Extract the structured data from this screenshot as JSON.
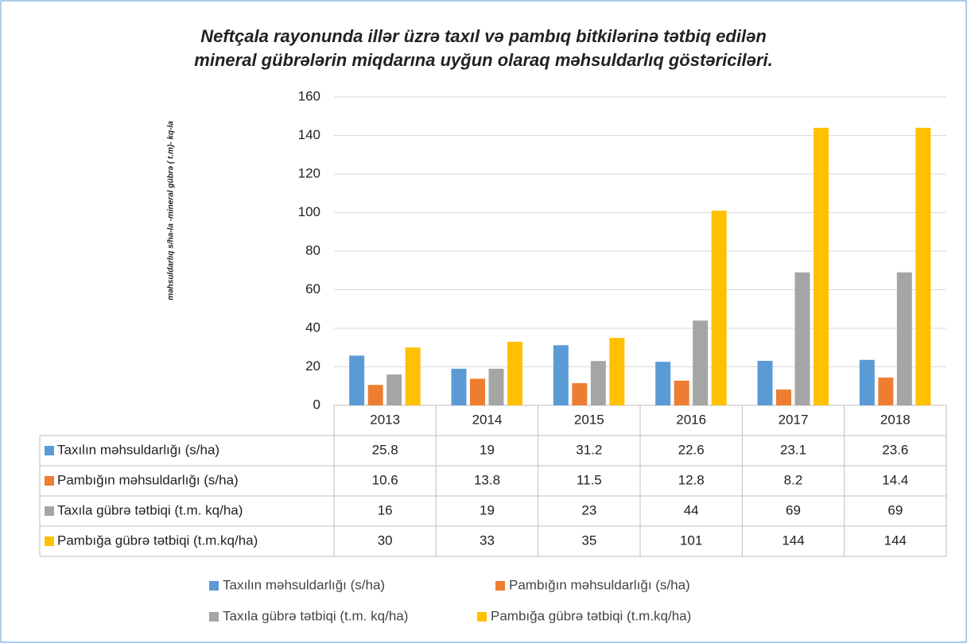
{
  "chart_data": {
    "type": "bar",
    "title": [
      "Neftçala rayonunda illər üzrə taxıl və pambıq bitkilərinə  tətbiq edilən",
      "mineral gübrələrin miqdarına uyğun olaraq məhsuldarlıq göstəriciləri."
    ],
    "y_label": "məhsuldarlıq s/ha-la -mineral gübrə ( t.m)- kq-la",
    "categories": [
      "2013",
      "2014",
      "2015",
      "2016",
      "2017",
      "2018"
    ],
    "series": [
      {
        "name": "Taxılın  məhsuldarlığı (s/ha)",
        "color": "#5b9bd5",
        "values": [
          25.8,
          19,
          31.2,
          22.6,
          23.1,
          23.6
        ]
      },
      {
        "name": "Pambığın məhsuldarlığı (s/ha)",
        "color": "#ed7d31",
        "values": [
          10.6,
          13.8,
          11.5,
          12.8,
          8.2,
          14.4
        ]
      },
      {
        "name": "Taxıla gübrə tətbiqi (t.m. kq/ha)",
        "color": "#a5a5a5",
        "values": [
          16,
          19,
          23,
          44,
          69,
          69
        ]
      },
      {
        "name": "Pambığa gübrə tətbiqi (t.m.kq/ha)",
        "color": "#ffc000",
        "values": [
          30,
          33,
          35,
          101,
          144,
          144
        ]
      }
    ],
    "ylim": [
      0,
      160
    ],
    "yticks": [
      0,
      20,
      40,
      60,
      80,
      100,
      120,
      140,
      160
    ],
    "grid": true,
    "legend": "bottom"
  }
}
